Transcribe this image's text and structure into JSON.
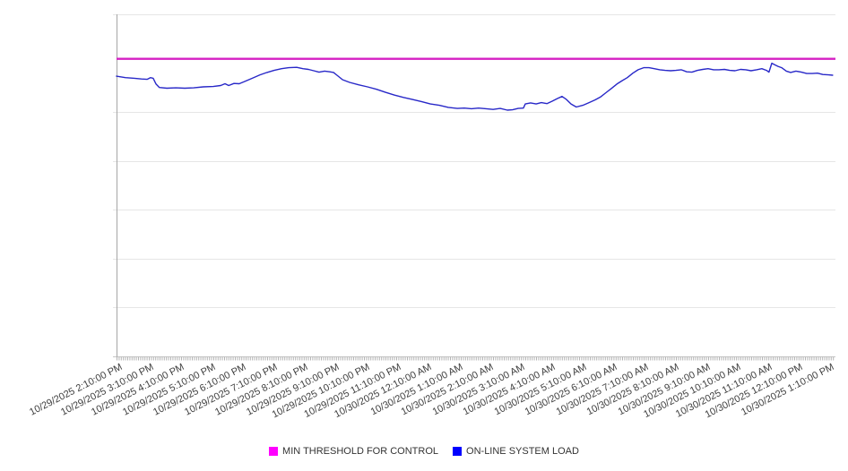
{
  "chart_data": {
    "type": "line",
    "title": "",
    "legend_position": "bottom-center",
    "grid": true,
    "x": {
      "unit": "time",
      "hours_between_labeled_ticks": 1,
      "tick_labels": [
        "10/29/2025 2:10:00 PM",
        "10/29/2025 3:10:00 PM",
        "10/29/2025 4:10:00 PM",
        "10/29/2025 5:10:00 PM",
        "10/29/2025 6:10:00 PM",
        "10/29/2025 7:10:00 PM",
        "10/29/2025 8:10:00 PM",
        "10/29/2025 9:10:00 PM",
        "10/29/2025 10:10:00 PM",
        "10/29/2025 11:10:00 PM",
        "10/30/2025 12:10:00 AM",
        "10/30/2025 1:10:00 AM",
        "10/30/2025 2:10:00 AM",
        "10/30/2025 3:10:00 AM",
        "10/30/2025 4:10:00 AM",
        "10/30/2025 5:10:00 AM",
        "10/30/2025 6:10:00 AM",
        "10/30/2025 7:10:00 AM",
        "10/30/2025 8:10:00 AM",
        "10/30/2025 9:10:00 AM",
        "10/30/2025 10:10:00 AM",
        "10/30/2025 11:10:00 AM",
        "10/30/2025 12:10:00 PM",
        "10/30/2025 1:10:00 PM"
      ]
    },
    "y": {
      "tick_labels_visible": false,
      "normalized_range": [
        0,
        1
      ],
      "grid_divisions": 7
    },
    "series": [
      {
        "name": "MIN THRESHOLD FOR CONTROL",
        "type": "threshold-line",
        "color": "#d51fc3",
        "legend_color": "#ff00ff",
        "value_normalized": 0.87
      },
      {
        "name": "ON-LINE SYSTEM LOAD",
        "type": "line",
        "color": "#2828c8",
        "legend_color": "#0000ff",
        "points_t_hours_v_normalized": [
          [
            -0.09,
            0.819
          ],
          [
            0.2,
            0.815
          ],
          [
            0.49,
            0.813
          ],
          [
            0.72,
            0.811
          ],
          [
            0.9,
            0.81
          ],
          [
            1.01,
            0.815
          ],
          [
            1.1,
            0.813
          ],
          [
            1.19,
            0.796
          ],
          [
            1.3,
            0.786
          ],
          [
            1.54,
            0.784
          ],
          [
            1.83,
            0.785
          ],
          [
            2.12,
            0.784
          ],
          [
            2.41,
            0.785
          ],
          [
            2.72,
            0.788
          ],
          [
            3.04,
            0.789
          ],
          [
            3.28,
            0.792
          ],
          [
            3.42,
            0.797
          ],
          [
            3.54,
            0.792
          ],
          [
            3.71,
            0.798
          ],
          [
            3.88,
            0.797
          ],
          [
            4.09,
            0.805
          ],
          [
            4.32,
            0.814
          ],
          [
            4.55,
            0.823
          ],
          [
            4.78,
            0.83
          ],
          [
            5.01,
            0.836
          ],
          [
            5.25,
            0.841
          ],
          [
            5.48,
            0.844
          ],
          [
            5.74,
            0.845
          ],
          [
            5.94,
            0.841
          ],
          [
            6.12,
            0.839
          ],
          [
            6.29,
            0.835
          ],
          [
            6.46,
            0.831
          ],
          [
            6.64,
            0.834
          ],
          [
            6.81,
            0.832
          ],
          [
            6.93,
            0.83
          ],
          [
            7.04,
            0.822
          ],
          [
            7.22,
            0.809
          ],
          [
            7.45,
            0.801
          ],
          [
            7.74,
            0.794
          ],
          [
            8.03,
            0.788
          ],
          [
            8.32,
            0.781
          ],
          [
            8.61,
            0.772
          ],
          [
            8.9,
            0.764
          ],
          [
            9.19,
            0.757
          ],
          [
            9.48,
            0.751
          ],
          [
            9.77,
            0.745
          ],
          [
            10.06,
            0.738
          ],
          [
            10.35,
            0.734
          ],
          [
            10.64,
            0.728
          ],
          [
            10.93,
            0.725
          ],
          [
            11.16,
            0.726
          ],
          [
            11.39,
            0.724
          ],
          [
            11.62,
            0.726
          ],
          [
            11.86,
            0.724
          ],
          [
            12.09,
            0.722
          ],
          [
            12.32,
            0.725
          ],
          [
            12.55,
            0.72
          ],
          [
            12.72,
            0.721
          ],
          [
            12.9,
            0.725
          ],
          [
            13.07,
            0.726
          ],
          [
            13.13,
            0.738
          ],
          [
            13.3,
            0.741
          ],
          [
            13.48,
            0.738
          ],
          [
            13.65,
            0.742
          ],
          [
            13.83,
            0.739
          ],
          [
            14.0,
            0.746
          ],
          [
            14.17,
            0.754
          ],
          [
            14.32,
            0.76
          ],
          [
            14.46,
            0.751
          ],
          [
            14.61,
            0.738
          ],
          [
            14.78,
            0.729
          ],
          [
            14.99,
            0.734
          ],
          [
            15.19,
            0.742
          ],
          [
            15.39,
            0.75
          ],
          [
            15.57,
            0.759
          ],
          [
            15.74,
            0.771
          ],
          [
            15.91,
            0.783
          ],
          [
            16.09,
            0.796
          ],
          [
            16.26,
            0.806
          ],
          [
            16.43,
            0.815
          ],
          [
            16.61,
            0.828
          ],
          [
            16.78,
            0.838
          ],
          [
            16.96,
            0.844
          ],
          [
            17.13,
            0.844
          ],
          [
            17.3,
            0.841
          ],
          [
            17.48,
            0.838
          ],
          [
            17.65,
            0.836
          ],
          [
            17.83,
            0.835
          ],
          [
            18.0,
            0.836
          ],
          [
            18.17,
            0.838
          ],
          [
            18.35,
            0.832
          ],
          [
            18.52,
            0.831
          ],
          [
            18.7,
            0.836
          ],
          [
            18.87,
            0.839
          ],
          [
            19.04,
            0.841
          ],
          [
            19.22,
            0.838
          ],
          [
            19.39,
            0.838
          ],
          [
            19.57,
            0.839
          ],
          [
            19.74,
            0.836
          ],
          [
            19.91,
            0.835
          ],
          [
            20.09,
            0.839
          ],
          [
            20.26,
            0.838
          ],
          [
            20.43,
            0.835
          ],
          [
            20.61,
            0.838
          ],
          [
            20.78,
            0.841
          ],
          [
            20.93,
            0.836
          ],
          [
            21.01,
            0.831
          ],
          [
            21.1,
            0.857
          ],
          [
            21.19,
            0.853
          ],
          [
            21.3,
            0.848
          ],
          [
            21.42,
            0.844
          ],
          [
            21.57,
            0.834
          ],
          [
            21.71,
            0.83
          ],
          [
            21.88,
            0.834
          ],
          [
            22.06,
            0.831
          ],
          [
            22.23,
            0.827
          ],
          [
            22.41,
            0.827
          ],
          [
            22.58,
            0.828
          ],
          [
            22.75,
            0.824
          ],
          [
            22.93,
            0.823
          ],
          [
            23.07,
            0.822
          ]
        ]
      }
    ]
  }
}
